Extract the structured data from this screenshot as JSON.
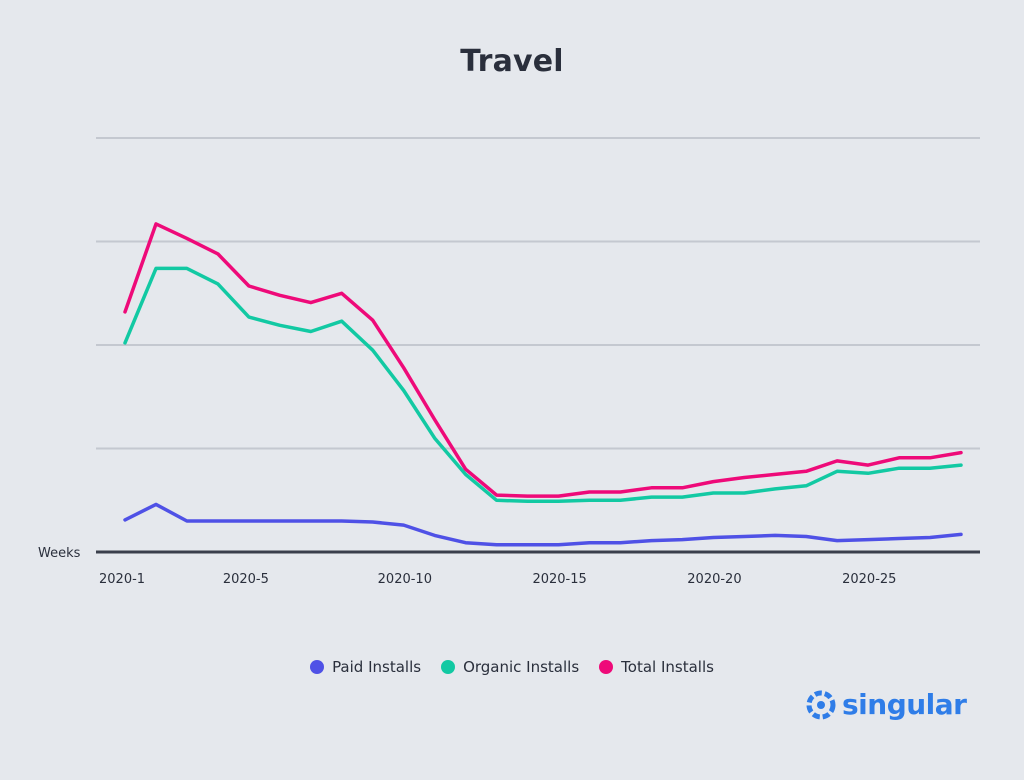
{
  "chart_data": {
    "type": "line",
    "title": "Travel",
    "xlabel": "Weeks",
    "ylabel": "",
    "x": [
      1,
      2,
      3,
      4,
      5,
      6,
      7,
      8,
      9,
      10,
      11,
      12,
      13,
      14,
      15,
      16,
      17,
      18,
      19,
      20,
      21,
      22,
      23,
      24,
      25,
      26,
      27,
      28
    ],
    "xticks": [
      {
        "value": 1,
        "label": "2020-1"
      },
      {
        "value": 5,
        "label": "2020-5"
      },
      {
        "value": 10,
        "label": "2020-10"
      },
      {
        "value": 15,
        "label": "2020-15"
      },
      {
        "value": 20,
        "label": "2020-20"
      },
      {
        "value": 25,
        "label": "2020-25"
      }
    ],
    "ylim": [
      0,
      4
    ],
    "ygridlines": [
      1,
      2,
      3,
      4
    ],
    "grid": true,
    "legend_position": "bottom",
    "series": [
      {
        "name": "Paid Installs",
        "color": "#4f51e6",
        "values": [
          0.31,
          0.46,
          0.3,
          0.3,
          0.3,
          0.3,
          0.3,
          0.3,
          0.29,
          0.26,
          0.16,
          0.09,
          0.07,
          0.07,
          0.07,
          0.09,
          0.09,
          0.11,
          0.12,
          0.14,
          0.15,
          0.16,
          0.15,
          0.11,
          0.12,
          0.13,
          0.14,
          0.17
        ]
      },
      {
        "name": "Organic Installs",
        "color": "#12c9a3",
        "values": [
          2.02,
          2.74,
          2.74,
          2.59,
          2.27,
          2.19,
          2.13,
          2.23,
          1.95,
          1.56,
          1.1,
          0.75,
          0.5,
          0.49,
          0.49,
          0.5,
          0.5,
          0.53,
          0.53,
          0.57,
          0.57,
          0.61,
          0.64,
          0.78,
          0.76,
          0.81,
          0.81,
          0.84
        ]
      },
      {
        "name": "Total Installs",
        "color": "#ee0a79",
        "values": [
          2.32,
          3.17,
          3.03,
          2.88,
          2.57,
          2.48,
          2.41,
          2.5,
          2.24,
          1.78,
          1.28,
          0.8,
          0.55,
          0.54,
          0.54,
          0.58,
          0.58,
          0.62,
          0.62,
          0.68,
          0.72,
          0.75,
          0.78,
          0.88,
          0.84,
          0.91,
          0.91,
          0.96
        ]
      }
    ]
  },
  "legend": {
    "items": [
      {
        "label": "Paid Installs",
        "color": "#4f51e6"
      },
      {
        "label": "Organic Installs",
        "color": "#12c9a3"
      },
      {
        "label": "Total Installs",
        "color": "#ee0a79"
      }
    ]
  },
  "brand": {
    "name": "singular",
    "color": "#2f7de8",
    "icon": "singular-logo-icon"
  },
  "colors": {
    "background": "#e5e8ed",
    "gridline": "#c4c8d0",
    "axis": "#3a3f4c",
    "text": "#2a2f3c"
  }
}
